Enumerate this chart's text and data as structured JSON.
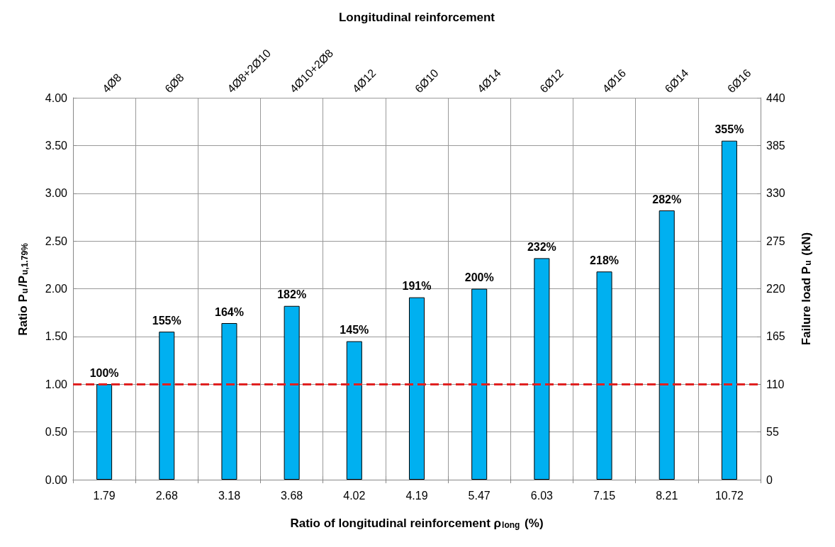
{
  "chart_data": {
    "type": "bar",
    "xlabel": "Ratio of longitudinal reinforcement ρ$_{long}$ (%)",
    "ylabel": "Ratio P$_{u}$/P$_{u,1.79%}$",
    "y2label": "Failure load P$_{u}$ (kN)",
    "x2label": "Longitudinal reinforcement",
    "categories": [
      "1.79",
      "2.68",
      "3.18",
      "3.68",
      "4.02",
      "4.19",
      "5.47",
      "6.03",
      "7.15",
      "8.21",
      "10.72"
    ],
    "annotations": [
      "4Ø8",
      "6Ø8",
      "4Ø8+2Ø10",
      "4Ø10+2Ø8",
      "4Ø12",
      "6Ø10",
      "4Ø14",
      "6Ø12",
      "4Ø16",
      "6Ø14",
      "6Ø16"
    ],
    "series": [
      {
        "color": "#00b0f0",
        "values": [
          1.0,
          1.55,
          1.64,
          1.82,
          1.45,
          1.91,
          2.0,
          2.32,
          2.18,
          2.82,
          3.55
        ],
        "value_labels": [
          "100%",
          "155%",
          "164%",
          "182%",
          "145%",
          "191%",
          "200%",
          "232%",
          "218%",
          "282%",
          "355%"
        ]
      }
    ],
    "ylim": [
      0,
      4
    ],
    "yticks": [
      {
        "value": 0,
        "label": "0.00"
      },
      {
        "value": 0.5,
        "label": "0.50"
      },
      {
        "value": 1,
        "label": "1.00"
      },
      {
        "value": 1.5,
        "label": "1.50"
      },
      {
        "value": 2,
        "label": "2.00"
      },
      {
        "value": 2.5,
        "label": "2.50"
      },
      {
        "value": 3,
        "label": "3.00"
      },
      {
        "value": 3.5,
        "label": "3.50"
      },
      {
        "value": 4,
        "label": "4.00"
      }
    ],
    "y2lim": [
      0,
      440
    ],
    "y2ticks": [
      0,
      55,
      110,
      165,
      220,
      275,
      330,
      385,
      440
    ],
    "ref_lines": [
      {
        "axis": "y",
        "value": 1,
        "color": "#e02020",
        "line_style": "dashed"
      }
    ],
    "grid": true
  }
}
